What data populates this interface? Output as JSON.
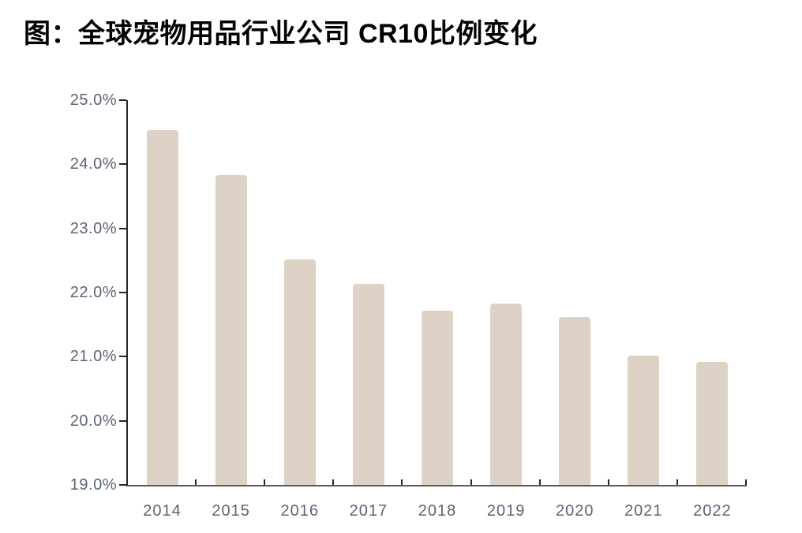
{
  "title": "图：全球宠物用品行业公司 CR10比例变化",
  "colors": {
    "background": "#ffffff",
    "bar": "#ded2c6",
    "y_axis": "#262626",
    "x_axis": "#595959",
    "tick": "#262626",
    "tick_label": "#5a6474",
    "title": "#000000"
  },
  "chart_data": {
    "type": "bar",
    "title": "图：全球宠物用品行业公司 CR10比例变化",
    "categories": [
      "2014",
      "2015",
      "2016",
      "2017",
      "2018",
      "2019",
      "2020",
      "2021",
      "2022"
    ],
    "values": [
      24.53,
      23.83,
      22.52,
      22.13,
      21.72,
      21.83,
      21.62,
      21.02,
      20.92
    ],
    "unit": "%",
    "xlabel": "",
    "ylabel": "",
    "ylim": [
      19.0,
      25.0
    ],
    "y_tick_step": 1.0,
    "y_tick_labels": [
      "19.0%",
      "20.0%",
      "21.0%",
      "22.0%",
      "23.0%",
      "24.0%",
      "25.0%"
    ],
    "grid": false,
    "legend_position": "none"
  }
}
